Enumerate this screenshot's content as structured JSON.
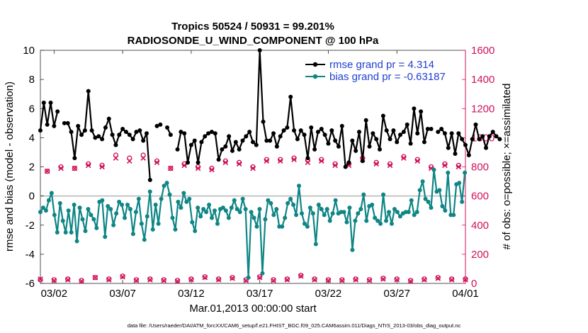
{
  "chart_data": {
    "type": "line",
    "title": "Tropics 50524 / 50931 = 99.201%",
    "subtitle": "RADIOSONDE_U_WIND_COMPONENT @ 100 hPa",
    "xlabel": "Mar.01,2013 00:00:00 start",
    "ylabel": "rmse and bias (model - observation)",
    "y2label": "# of obs: o=possible; ×=assimilated",
    "footer": "data file: /Users/raeder/DAI/ATM_forcXX/CAM6_setup/f.e21.FHIST_BGC.f09_025.CAM6assim.011/Diags_NTrS_2013-03/obs_diag_output.nc",
    "xlim": [
      0,
      31
    ],
    "ylim": [
      -6,
      10
    ],
    "y2lim": [
      0,
      1600
    ],
    "x_ticks": [
      1,
      6,
      11,
      16,
      21,
      26,
      31
    ],
    "x_tick_labels": [
      "03/02",
      "03/07",
      "03/12",
      "03/17",
      "03/22",
      "03/27",
      "04/01"
    ],
    "y_ticks": [
      -6,
      -4,
      -2,
      0,
      2,
      4,
      6,
      8,
      10
    ],
    "y_tick_labels": [
      "-6",
      "-4",
      "-2",
      "0",
      "2",
      "4",
      "6",
      "8",
      "10"
    ],
    "y2_ticks": [
      0,
      200,
      400,
      600,
      800,
      1000,
      1200,
      1400,
      1600
    ],
    "y2_tick_labels": [
      "0",
      "200",
      "400",
      "600",
      "800",
      "1000",
      "1200",
      "1400",
      "1600"
    ],
    "zero_line": 0,
    "colors": {
      "rmse": "#000000",
      "bias": "#0f8585",
      "obs": "#d0105a",
      "legend_text": "#1f3fd1",
      "zero_line": "#b4b4b4"
    },
    "legend": [
      {
        "label": "rmse grand pr = 4.314",
        "series": "rmse"
      },
      {
        "label": "bias grand pr = -0.63187",
        "series": "bias"
      }
    ],
    "x_step": 0.25,
    "series": [
      {
        "name": "rmse",
        "values": [
          4.5,
          6.4,
          4.9,
          6.4,
          4.8,
          5.8,
          null,
          5,
          5,
          4.4,
          2.6,
          4.8,
          4.2,
          4.5,
          7.2,
          4.5,
          4,
          4.1,
          3.9,
          4.7,
          5.3,
          4.2,
          3.5,
          4.2,
          4.6,
          4.4,
          4.2,
          3.9,
          4.4,
          4.5,
          3.8,
          4.3,
          1.1,
          null,
          4.8,
          4.9,
          null,
          4.7,
          4.2,
          null,
          3.2,
          4.4,
          4.3,
          2.3,
          3.5,
          3.8,
          2.3,
          3.7,
          4.1,
          4.3,
          4.4,
          4.3,
          2.5,
          3.2,
          3.4,
          4.1,
          3.1,
          3.7,
          3.2,
          3.8,
          4.1,
          4.4,
          3.7,
          3.5,
          10,
          5.1,
          3.8,
          3.8,
          4.3,
          3.4,
          4.1,
          4.5,
          4.7,
          6.8,
          4.5,
          3.9,
          4.5,
          4.2,
          2.6,
          4.7,
          3.2,
          4.4,
          4.6,
          4.2,
          3.6,
          4.5,
          3.8,
          3.4,
          4.8,
          2,
          2.3,
          3.8,
          3.1,
          4.4,
          2.4,
          5.2,
          3.4,
          4.3,
          3.9,
          3.2,
          5.5,
          4.5,
          3.9,
          4.5,
          3.7,
          4.2,
          4.4,
          4.9,
          3.6,
          6,
          4.3,
          5.8,
          3.7,
          4.6,
          4.6,
          null,
          4.4,
          4.6,
          4.3,
          3.3,
          4.3,
          2.9,
          4.3,
          3.9,
          3.5,
          2.8,
          3.9,
          4.9,
          3.9,
          4.1,
          3.3,
          4.1,
          4.4,
          4.1,
          3.9,
          null
        ]
      },
      {
        "name": "bias",
        "values": [
          -1.1,
          -0.8,
          -1,
          -0.3,
          0.2,
          -1.3,
          -2.5,
          -0.5,
          -1.7,
          -2.5,
          -1,
          -2.5,
          -0.6,
          -3.1,
          -0.8,
          -1.6,
          -2.4,
          -0.9,
          -1.3,
          -1.6,
          -2.2,
          -0.4,
          -0.3,
          -2.8,
          -0.7,
          -0.9,
          -2,
          -1.2,
          -0.4,
          -0.6,
          -1.5,
          -0.6,
          -0.9,
          -2.6,
          -1.1,
          -0.2,
          -1.9,
          -3,
          -1.4,
          0.3,
          -2.3,
          -0.6,
          -1.9,
          -0.2,
          0.7,
          0.9,
          0.1,
          -1.5,
          -2.3,
          -0.4,
          -0.8,
          0.2,
          -0.4,
          -0.2,
          -1.8,
          -2.4,
          -0.8,
          -1.4,
          -0.9,
          -1.1,
          -0.6,
          -1.5,
          -1,
          -1.9,
          -0.9,
          -0.8,
          -1,
          -1.5,
          -0.8,
          -0.3,
          -0.9,
          -1.1,
          -0.2,
          -0.9,
          -5.6,
          -1.1,
          -1.5,
          -2.1,
          -0.9,
          -5.3,
          -1.6,
          -0.3,
          -0.5,
          -1.3,
          -0.9,
          -2.1,
          -2.1,
          -1.5,
          -0.5,
          -0.2,
          -0.6,
          -1.3,
          0.7,
          -1.2,
          -1.9,
          -2.1,
          -0.8,
          -1.2,
          -3.3,
          -0.6,
          -0.9,
          -1.3,
          -0.9,
          -1.7,
          -1.2,
          -0.3,
          -1.2,
          -1.1,
          -1.1,
          -1.8,
          -0.8,
          -3.7,
          -1.7,
          -1.2,
          -0.9,
          0.1,
          -1.7,
          -0.7,
          -0.6,
          -1.5,
          -1.7,
          -1.9,
          0.1,
          -1.7,
          -1.1,
          -1.9,
          -0.9,
          -1.1,
          -1.4,
          -1.2,
          -1.1,
          -1.1,
          -0.3,
          -1.3,
          -1.1,
          0.4,
          1,
          -0.2,
          -0.4,
          -0.8,
          1.8,
          0.3,
          0.4,
          -0.7,
          -1,
          1.6,
          -1.3,
          -1.3,
          0.8,
          0.9,
          -0.4,
          1.6
        ],
        "x_override": {
          "start": 0,
          "step": 0.205
        }
      }
    ],
    "obs_possible": {
      "x": [
        0,
        0.5,
        1,
        1.5,
        2,
        2.5,
        3,
        3.5,
        4,
        4.5,
        5,
        5.5,
        6,
        6.5,
        7,
        7.5,
        8,
        8.5,
        9,
        9.5,
        10,
        10.5,
        11,
        11.5,
        12,
        12.5,
        13,
        13.5,
        14,
        14.5,
        15,
        15.5,
        16,
        16.5,
        17,
        17.5,
        18,
        18.5,
        19,
        19.5,
        20,
        20.5,
        21,
        21.5,
        22,
        22.5,
        23,
        23.5,
        24,
        24.5,
        25,
        25.5,
        26,
        26.5,
        27,
        27.5,
        28,
        28.5,
        29,
        29.5,
        30,
        30.5,
        31
      ],
      "values": [
        25,
        770,
        25,
        800,
        30,
        790,
        20,
        820,
        40,
        810,
        30,
        880,
        50,
        860,
        25,
        880,
        30,
        840,
        25,
        790,
        20,
        820,
        30,
        800,
        45,
        790,
        30,
        840,
        40,
        830,
        25,
        800,
        45,
        850,
        25,
        850,
        30,
        860,
        55,
        845,
        30,
        850,
        25,
        820,
        25,
        820,
        30,
        860,
        25,
        830,
        35,
        820,
        30,
        870,
        20,
        850,
        30,
        800,
        40,
        820,
        30,
        810,
        30
      ]
    },
    "obs_assimilated": {
      "x": [
        0,
        0.5,
        1,
        1.5,
        2,
        2.5,
        3,
        3.5,
        4,
        4.5,
        5,
        5.5,
        6,
        6.5,
        7,
        7.5,
        8,
        8.5,
        9,
        9.5,
        10,
        10.5,
        11,
        11.5,
        12,
        12.5,
        13,
        13.5,
        14,
        14.5,
        15,
        15.5,
        16,
        16.5,
        17,
        17.5,
        18,
        18.5,
        19,
        19.5,
        20,
        20.5,
        21,
        21.5,
        22,
        22.5,
        23,
        23.5,
        24,
        24.5,
        25,
        25.5,
        26,
        26.5,
        27,
        27.5,
        28,
        28.5,
        29,
        29.5,
        30,
        30.5,
        31
      ],
      "values": [
        30,
        770,
        20,
        790,
        25,
        790,
        15,
        810,
        40,
        800,
        25,
        860,
        45,
        840,
        20,
        860,
        25,
        830,
        20,
        790,
        15,
        810,
        25,
        790,
        40,
        780,
        25,
        830,
        35,
        820,
        20,
        790,
        40,
        840,
        20,
        840,
        25,
        850,
        50,
        830,
        25,
        840,
        20,
        810,
        20,
        810,
        25,
        850,
        20,
        820,
        30,
        810,
        25,
        860,
        15,
        840,
        25,
        790,
        35,
        810,
        25,
        800,
        25
      ]
    }
  }
}
